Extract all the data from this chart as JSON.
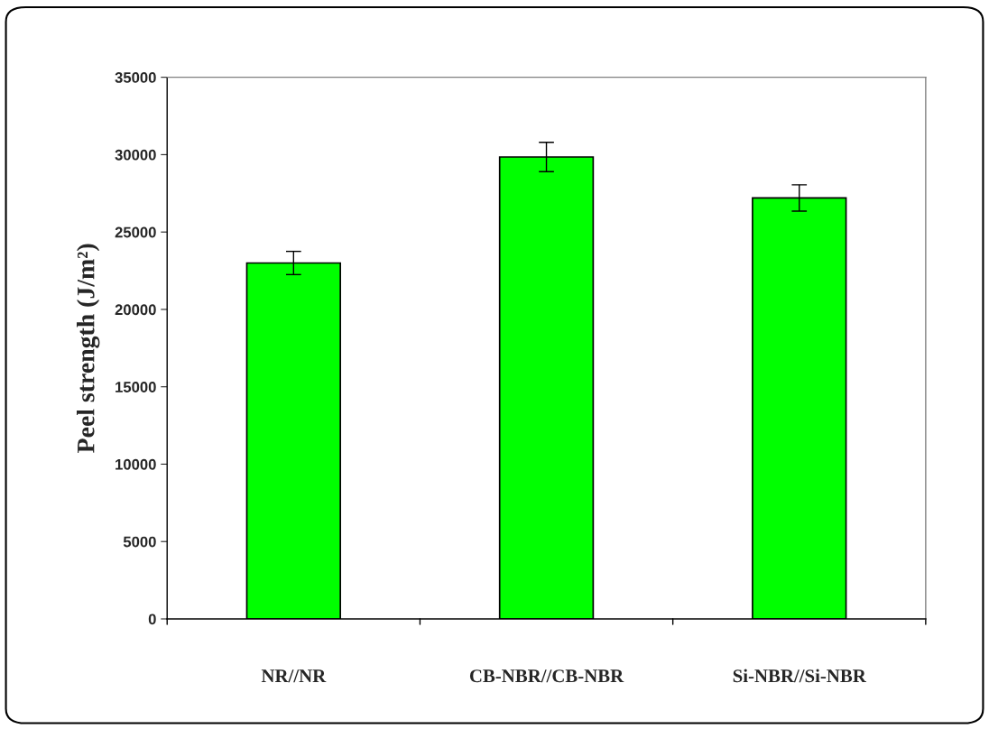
{
  "chart_data": {
    "type": "bar",
    "ylabel": "Peel strength (J/m²)",
    "categories": [
      "NR//NR",
      "CB-NBR//CB-NBR",
      "Si-NBR//Si-NBR"
    ],
    "values": [
      23000,
      29850,
      27200
    ],
    "errors": [
      750,
      950,
      850
    ],
    "color": "#00ff00",
    "ylim": [
      0,
      35000
    ],
    "yticks": [
      0,
      5000,
      10000,
      15000,
      20000,
      25000,
      30000,
      35000
    ],
    "grid": false,
    "legend": false
  }
}
